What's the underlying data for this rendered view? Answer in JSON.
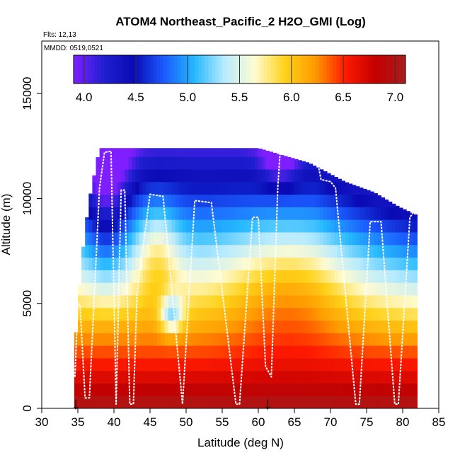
{
  "chart_data": {
    "type": "heatmap",
    "title": "ATOM4 Northeast_Pacific_2 H2O_GMI (Log)",
    "flights_label": "Flts: 12,13",
    "dates_label": "MMDD: 0519,0521",
    "xlabel": "Latitude (deg N)",
    "ylabel": "Altitude (m)",
    "xlim": [
      30,
      85
    ],
    "ylim": [
      0,
      17500
    ],
    "xticks": [
      "30",
      "35",
      "40",
      "45",
      "50",
      "55",
      "60",
      "65",
      "70",
      "75",
      "80",
      "85"
    ],
    "yticks": [
      "0",
      "5000",
      "10000",
      "15000"
    ],
    "colorbar": {
      "min": 3.9,
      "max": 7.1,
      "ticks": [
        "4.0",
        "4.5",
        "5.0",
        "5.5",
        "6.0",
        "6.5",
        "7.0"
      ],
      "colors": [
        "#7f1fff",
        "#1f1fd0",
        "#0a0ab4",
        "#1b5bff",
        "#24b8ff",
        "#b8ebff",
        "#fffbd0",
        "#ffd21a",
        "#ff9a00",
        "#ff1a00",
        "#c40000",
        "#a81d1d"
      ]
    },
    "markers": [
      {
        "x": 34.7,
        "symbol": "↓"
      },
      {
        "x": 61.3,
        "symbol": "↓"
      }
    ],
    "top_profile": [
      {
        "lat": 34.5,
        "alt": 2500
      },
      {
        "lat": 35.5,
        "alt": 7000
      },
      {
        "lat": 36.5,
        "alt": 9800
      },
      {
        "lat": 38.0,
        "alt": 12400
      },
      {
        "lat": 50.0,
        "alt": 12400
      },
      {
        "lat": 60.0,
        "alt": 12400
      },
      {
        "lat": 67.0,
        "alt": 11700
      },
      {
        "lat": 72.0,
        "alt": 10800
      },
      {
        "lat": 76.0,
        "alt": 10300
      },
      {
        "lat": 79.5,
        "alt": 9600
      },
      {
        "lat": 82.0,
        "alt": 9200
      }
    ],
    "flight_track": [
      [
        34.6,
        1500
      ],
      [
        35.0,
        5000
      ],
      [
        35.3,
        4900
      ],
      [
        36.0,
        500
      ],
      [
        36.6,
        500
      ],
      [
        38.0,
        10500
      ],
      [
        38.7,
        12200
      ],
      [
        39.6,
        12250
      ],
      [
        40.3,
        200
      ],
      [
        41.0,
        10400
      ],
      [
        41.5,
        10400
      ],
      [
        42.2,
        200
      ],
      [
        42.7,
        200
      ],
      [
        43.2,
        5500
      ],
      [
        45.0,
        10200
      ],
      [
        46.8,
        10100
      ],
      [
        49.5,
        200
      ],
      [
        51.2,
        9900
      ],
      [
        53.5,
        9800
      ],
      [
        56.9,
        200
      ],
      [
        57.4,
        200
      ],
      [
        59.2,
        9100
      ],
      [
        60.0,
        9100
      ],
      [
        61.0,
        2000
      ],
      [
        61.8,
        1500
      ],
      [
        62.7,
        10500
      ],
      [
        63.0,
        12100
      ],
      [
        68.0,
        12100
      ],
      [
        68.7,
        10900
      ],
      [
        70.0,
        10800
      ],
      [
        70.7,
        10500
      ],
      [
        73.5,
        200
      ],
      [
        74.0,
        200
      ],
      [
        75.5,
        8900
      ],
      [
        77.0,
        8900
      ],
      [
        78.9,
        200
      ],
      [
        79.4,
        200
      ],
      [
        81.0,
        9100
      ],
      [
        81.8,
        9500
      ]
    ]
  }
}
